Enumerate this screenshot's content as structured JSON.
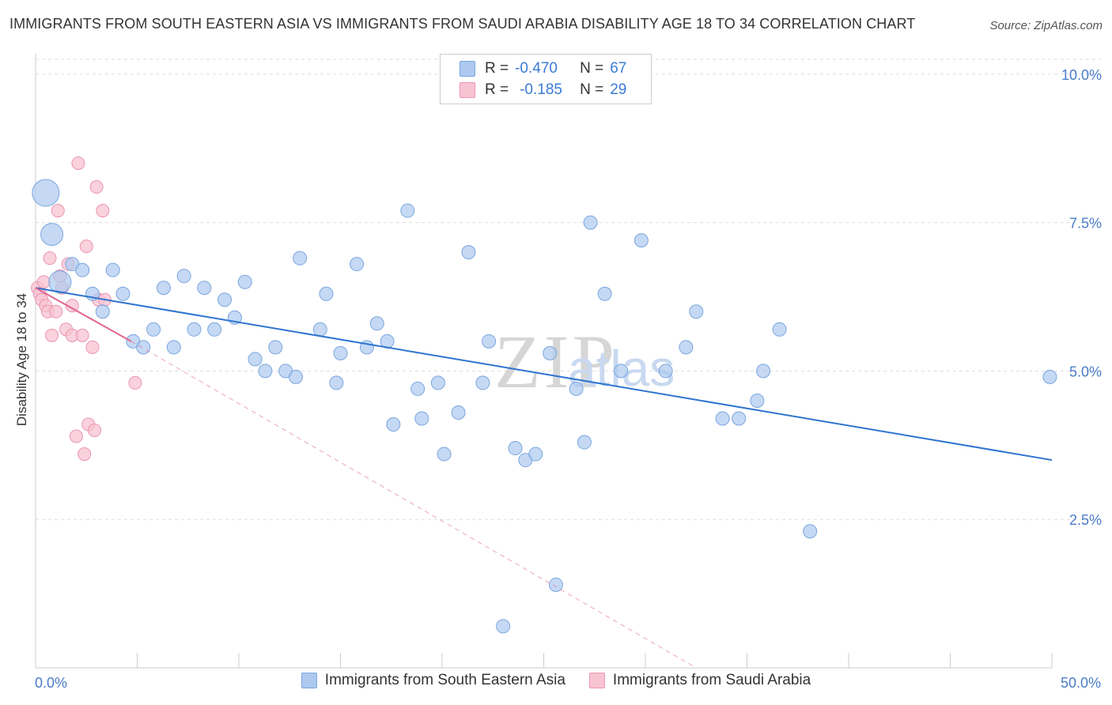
{
  "title": "IMMIGRANTS FROM SOUTH EASTERN ASIA VS IMMIGRANTS FROM SAUDI ARABIA DISABILITY AGE 18 TO 34 CORRELATION CHART",
  "source": "Source: ZipAtlas.com",
  "watermark": {
    "zip": "ZIP",
    "atlas": "atlas"
  },
  "stats": [
    {
      "r_label": "R =",
      "r_value": "-0.470",
      "n_label": "N =",
      "n_value": "67"
    },
    {
      "r_label": "R =",
      "r_value": "-0.185",
      "n_label": "N =",
      "n_value": "29"
    }
  ],
  "colors": {
    "blue_fill": "#adc9ef",
    "blue_stroke": "#7aa6de",
    "blue_line": "#2e74d0",
    "pink_fill": "#f7c3d2",
    "pink_stroke": "#ec93b0",
    "pink_line": "#e0668f",
    "tick_label": "#4a7cc8",
    "grid": "#dddddd"
  },
  "chart_data": {
    "type": "scatter",
    "title": "IMMIGRANTS FROM SOUTH EASTERN ASIA VS IMMIGRANTS FROM SAUDI ARABIA DISABILITY AGE 18 TO 34 CORRELATION CHART",
    "xlabel": "",
    "ylabel": "Disability Age 18 to 34",
    "xlim": [
      0,
      50
    ],
    "ylim": [
      0,
      10.25
    ],
    "x_tick_labels": [
      "0.0%",
      "50.0%"
    ],
    "y_ticks": [
      2.5,
      5.0,
      7.5,
      10.0
    ],
    "y_tick_labels": [
      "2.5%",
      "5.0%",
      "7.5%",
      "10.0%"
    ],
    "grid": true,
    "legend_position": "bottom-center",
    "series": [
      {
        "name": "Immigrants from South Eastern Asia",
        "color": "#adc9ef",
        "points": [
          [
            0.5,
            8.0,
            3
          ],
          [
            0.8,
            7.3,
            2
          ],
          [
            1.2,
            6.5,
            2
          ],
          [
            1.8,
            6.8,
            1
          ],
          [
            2.3,
            6.7,
            1
          ],
          [
            2.8,
            6.3,
            1
          ],
          [
            3.3,
            6.0,
            1
          ],
          [
            3.8,
            6.7,
            1
          ],
          [
            4.3,
            6.3,
            1
          ],
          [
            4.8,
            5.5,
            1
          ],
          [
            5.3,
            5.4,
            1
          ],
          [
            5.8,
            5.7,
            1
          ],
          [
            6.3,
            6.4,
            1
          ],
          [
            6.8,
            5.4,
            1
          ],
          [
            7.3,
            6.6,
            1
          ],
          [
            7.8,
            5.7,
            1
          ],
          [
            8.3,
            6.4,
            1
          ],
          [
            8.8,
            5.7,
            1
          ],
          [
            9.3,
            6.2,
            1
          ],
          [
            9.8,
            5.9,
            1
          ],
          [
            10.3,
            6.5,
            1
          ],
          [
            10.8,
            5.2,
            1
          ],
          [
            11.3,
            5.0,
            1
          ],
          [
            11.8,
            5.4,
            1
          ],
          [
            12.3,
            5.0,
            1
          ],
          [
            12.8,
            4.9,
            1
          ],
          [
            13.0,
            6.9,
            1
          ],
          [
            14.0,
            5.7,
            1
          ],
          [
            14.3,
            6.3,
            1
          ],
          [
            14.8,
            4.8,
            1
          ],
          [
            15.0,
            5.3,
            1
          ],
          [
            15.8,
            6.8,
            1
          ],
          [
            16.3,
            5.4,
            1
          ],
          [
            16.8,
            5.8,
            1
          ],
          [
            17.3,
            5.5,
            1
          ],
          [
            17.6,
            4.1,
            1
          ],
          [
            18.3,
            7.7,
            1
          ],
          [
            18.8,
            4.7,
            1
          ],
          [
            19.0,
            4.2,
            1
          ],
          [
            19.8,
            4.8,
            1
          ],
          [
            20.1,
            3.6,
            1
          ],
          [
            20.8,
            4.3,
            1
          ],
          [
            21.3,
            7.0,
            1
          ],
          [
            22.0,
            4.8,
            1
          ],
          [
            22.3,
            5.5,
            1
          ],
          [
            23.0,
            0.7,
            1
          ],
          [
            23.6,
            3.7,
            1
          ],
          [
            24.1,
            3.5,
            1
          ],
          [
            24.6,
            3.6,
            1
          ],
          [
            25.3,
            5.3,
            1
          ],
          [
            25.6,
            1.4,
            1
          ],
          [
            26.6,
            4.7,
            1
          ],
          [
            27.0,
            3.8,
            1
          ],
          [
            27.3,
            7.5,
            1
          ],
          [
            28.0,
            6.3,
            1
          ],
          [
            28.8,
            5.0,
            1
          ],
          [
            29.8,
            7.2,
            1
          ],
          [
            31.0,
            5.0,
            1
          ],
          [
            32.0,
            5.4,
            1
          ],
          [
            32.5,
            6.0,
            1
          ],
          [
            33.8,
            4.2,
            1
          ],
          [
            34.6,
            4.2,
            1
          ],
          [
            35.5,
            4.5,
            1
          ],
          [
            35.8,
            5.0,
            1
          ],
          [
            36.6,
            5.7,
            1
          ],
          [
            38.1,
            2.3,
            1
          ],
          [
            49.9,
            4.9,
            1
          ]
        ]
      },
      {
        "name": "Immigrants from Saudi Arabia",
        "color": "#f7c3d2",
        "points": [
          [
            0.1,
            6.4
          ],
          [
            0.2,
            6.3
          ],
          [
            0.3,
            6.2
          ],
          [
            0.4,
            6.5
          ],
          [
            0.5,
            6.1
          ],
          [
            0.6,
            6.0
          ],
          [
            0.7,
            6.9
          ],
          [
            0.8,
            5.6
          ],
          [
            1.0,
            6.0
          ],
          [
            1.1,
            7.7
          ],
          [
            1.2,
            6.6
          ],
          [
            1.3,
            6.4
          ],
          [
            1.5,
            5.7
          ],
          [
            1.6,
            6.8
          ],
          [
            1.8,
            6.1
          ],
          [
            1.8,
            5.6
          ],
          [
            2.0,
            3.9
          ],
          [
            2.1,
            8.5
          ],
          [
            2.3,
            5.6
          ],
          [
            2.4,
            3.6
          ],
          [
            2.5,
            7.1
          ],
          [
            2.6,
            4.1
          ],
          [
            2.8,
            5.4
          ],
          [
            2.9,
            4.0
          ],
          [
            3.0,
            8.1
          ],
          [
            3.1,
            6.2
          ],
          [
            3.3,
            7.7
          ],
          [
            3.4,
            6.2
          ],
          [
            4.9,
            4.8
          ]
        ]
      }
    ],
    "trend_lines": [
      {
        "series": "Immigrants from South Eastern Asia",
        "from": [
          0,
          6.4
        ],
        "to": [
          50,
          3.5
        ],
        "style": "solid"
      },
      {
        "series": "Immigrants from Saudi Arabia",
        "from": [
          0,
          6.4
        ],
        "to": [
          4.7,
          5.5
        ],
        "style": "solid"
      },
      {
        "series": "Immigrants from Saudi Arabia",
        "from": [
          4.7,
          5.5
        ],
        "to": [
          32.5,
          0.0
        ],
        "style": "dashed"
      }
    ]
  }
}
